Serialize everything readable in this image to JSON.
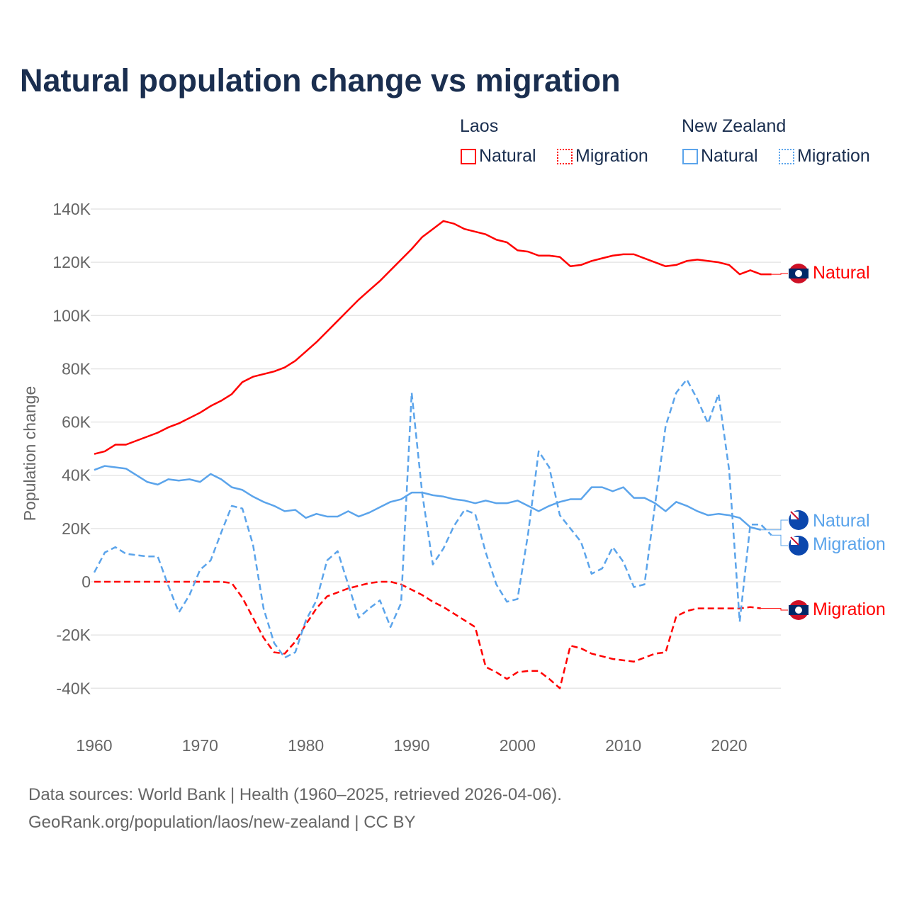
{
  "title": "Natural population change vs migration",
  "legend": {
    "groups": [
      {
        "name": "Laos",
        "items": [
          {
            "label": "Natural",
            "style": "solid"
          },
          {
            "label": "Migration",
            "style": "dotted"
          }
        ],
        "color": "#ff0000"
      },
      {
        "name": "New Zealand",
        "items": [
          {
            "label": "Natural",
            "style": "solid"
          },
          {
            "label": "Migration",
            "style": "dotted"
          }
        ],
        "color": "#5ba4eb"
      }
    ]
  },
  "footer": {
    "line1": "Data sources: World Bank | Health (1960–2025, retrieved 2026-04-06).",
    "line2": "GeoRank.org/population/laos/new-zealand | CC BY"
  },
  "chart_data": {
    "type": "line",
    "title": "Natural population change vs migration",
    "xlabel": "",
    "ylabel": "Population change",
    "xlim": [
      1960,
      2025
    ],
    "ylim": [
      -50000,
      145000
    ],
    "xticks": [
      1960,
      1970,
      1980,
      1990,
      2000,
      2010,
      2020
    ],
    "xtick_labels": [
      "1960",
      "1970",
      "1980",
      "1990",
      "2000",
      "2010",
      "2020"
    ],
    "yticks": [
      -40000,
      -20000,
      0,
      20000,
      40000,
      60000,
      80000,
      100000,
      120000,
      140000
    ],
    "ytick_labels": [
      "-40K",
      "-20K",
      "0",
      "20K",
      "40K",
      "60K",
      "80K",
      "100K",
      "120K",
      "140K"
    ],
    "grid": true,
    "legend_position": "top-right",
    "series": [
      {
        "name": "Laos Natural",
        "end_label": "Natural",
        "color": "#ff0000",
        "dash": false,
        "start_year": 1960,
        "values_k": [
          48,
          49,
          51.5,
          51.5,
          53,
          54.5,
          56,
          58,
          59.5,
          61.5,
          63.5,
          66,
          68,
          70.5,
          75,
          77,
          78,
          79,
          80.5,
          83,
          86.5,
          90,
          94,
          98,
          102,
          106,
          109.5,
          113,
          117,
          121,
          125,
          129.5,
          132.5,
          135.5,
          134.5,
          132.5,
          131.5,
          130.5,
          128.5,
          127.5,
          124.5,
          124,
          122.5,
          122.5,
          122,
          118.5,
          119,
          120.5,
          121.5,
          122.5,
          123,
          123,
          121.5,
          120,
          118.5,
          119,
          120.5,
          121,
          120.5,
          120,
          119,
          115.5,
          117,
          115.5,
          115.5
        ]
      },
      {
        "name": "Laos Migration",
        "end_label": "Migration",
        "color": "#ff0000",
        "dash": true,
        "start_year": 1960,
        "values_k": [
          0,
          0,
          0,
          0,
          0,
          0,
          0,
          0,
          0,
          0,
          0,
          0,
          0,
          -0.5,
          -6,
          -13.5,
          -21,
          -26.5,
          -27,
          -22.5,
          -16,
          -10,
          -5.5,
          -4,
          -2.5,
          -1.5,
          -0.5,
          0,
          0,
          -1,
          -3,
          -5,
          -7.5,
          -9.5,
          -12,
          -14.5,
          -17,
          -32,
          -34,
          -36.5,
          -34,
          -33.5,
          -33.5,
          -36.5,
          -40,
          -24,
          -25,
          -27,
          -28,
          -29,
          -29.5,
          -30,
          -28.5,
          -27,
          -26.5,
          -13,
          -11,
          -10,
          -10,
          -10,
          -10,
          -10,
          -9.5,
          -10
        ]
      },
      {
        "name": "New Zealand Natural",
        "end_label": "Natural",
        "color": "#5ba4eb",
        "dash": false,
        "start_year": 1960,
        "values_k": [
          42,
          43.5,
          43,
          42.5,
          40,
          37.5,
          36.5,
          38.5,
          38,
          38.5,
          37.5,
          40.5,
          38.5,
          35.5,
          34.5,
          32,
          30,
          28.5,
          26.5,
          27,
          24,
          25.5,
          24.5,
          24.5,
          26.5,
          24.5,
          26,
          28,
          30,
          31,
          33.5,
          33.5,
          32.5,
          32,
          31,
          30.5,
          29.5,
          30.5,
          29.5,
          29.5,
          30.5,
          28.5,
          26.5,
          28.5,
          30,
          31,
          31,
          35.5,
          35.5,
          34,
          35.5,
          31.5,
          31.5,
          29.5,
          26.5,
          30,
          28.5,
          26.5,
          25,
          25.5,
          25,
          24,
          20.5,
          19.5
        ]
      },
      {
        "name": "New Zealand Migration",
        "end_label": "Migration",
        "color": "#5ba4eb",
        "dash": true,
        "start_year": 1960,
        "values_k": [
          3.5,
          11,
          13,
          10.5,
          10,
          9.5,
          9.5,
          -1.5,
          -11.5,
          -5,
          4.5,
          8,
          18.5,
          28.5,
          27.5,
          14,
          -10,
          -23,
          -28.5,
          -26.5,
          -14.5,
          -7,
          8,
          11.5,
          -1,
          -13.5,
          -10,
          -7,
          -17,
          -8,
          71,
          33,
          6.5,
          12.5,
          21,
          27,
          25.5,
          11,
          -1,
          -7.5,
          -6.5,
          18,
          49,
          43,
          25,
          20,
          15,
          3,
          5,
          13,
          7.5,
          -2,
          -1,
          29,
          58.5,
          71,
          76,
          68.5,
          59.5,
          70.5,
          42,
          -15,
          21.5,
          21.5,
          17.5
        ]
      }
    ]
  }
}
